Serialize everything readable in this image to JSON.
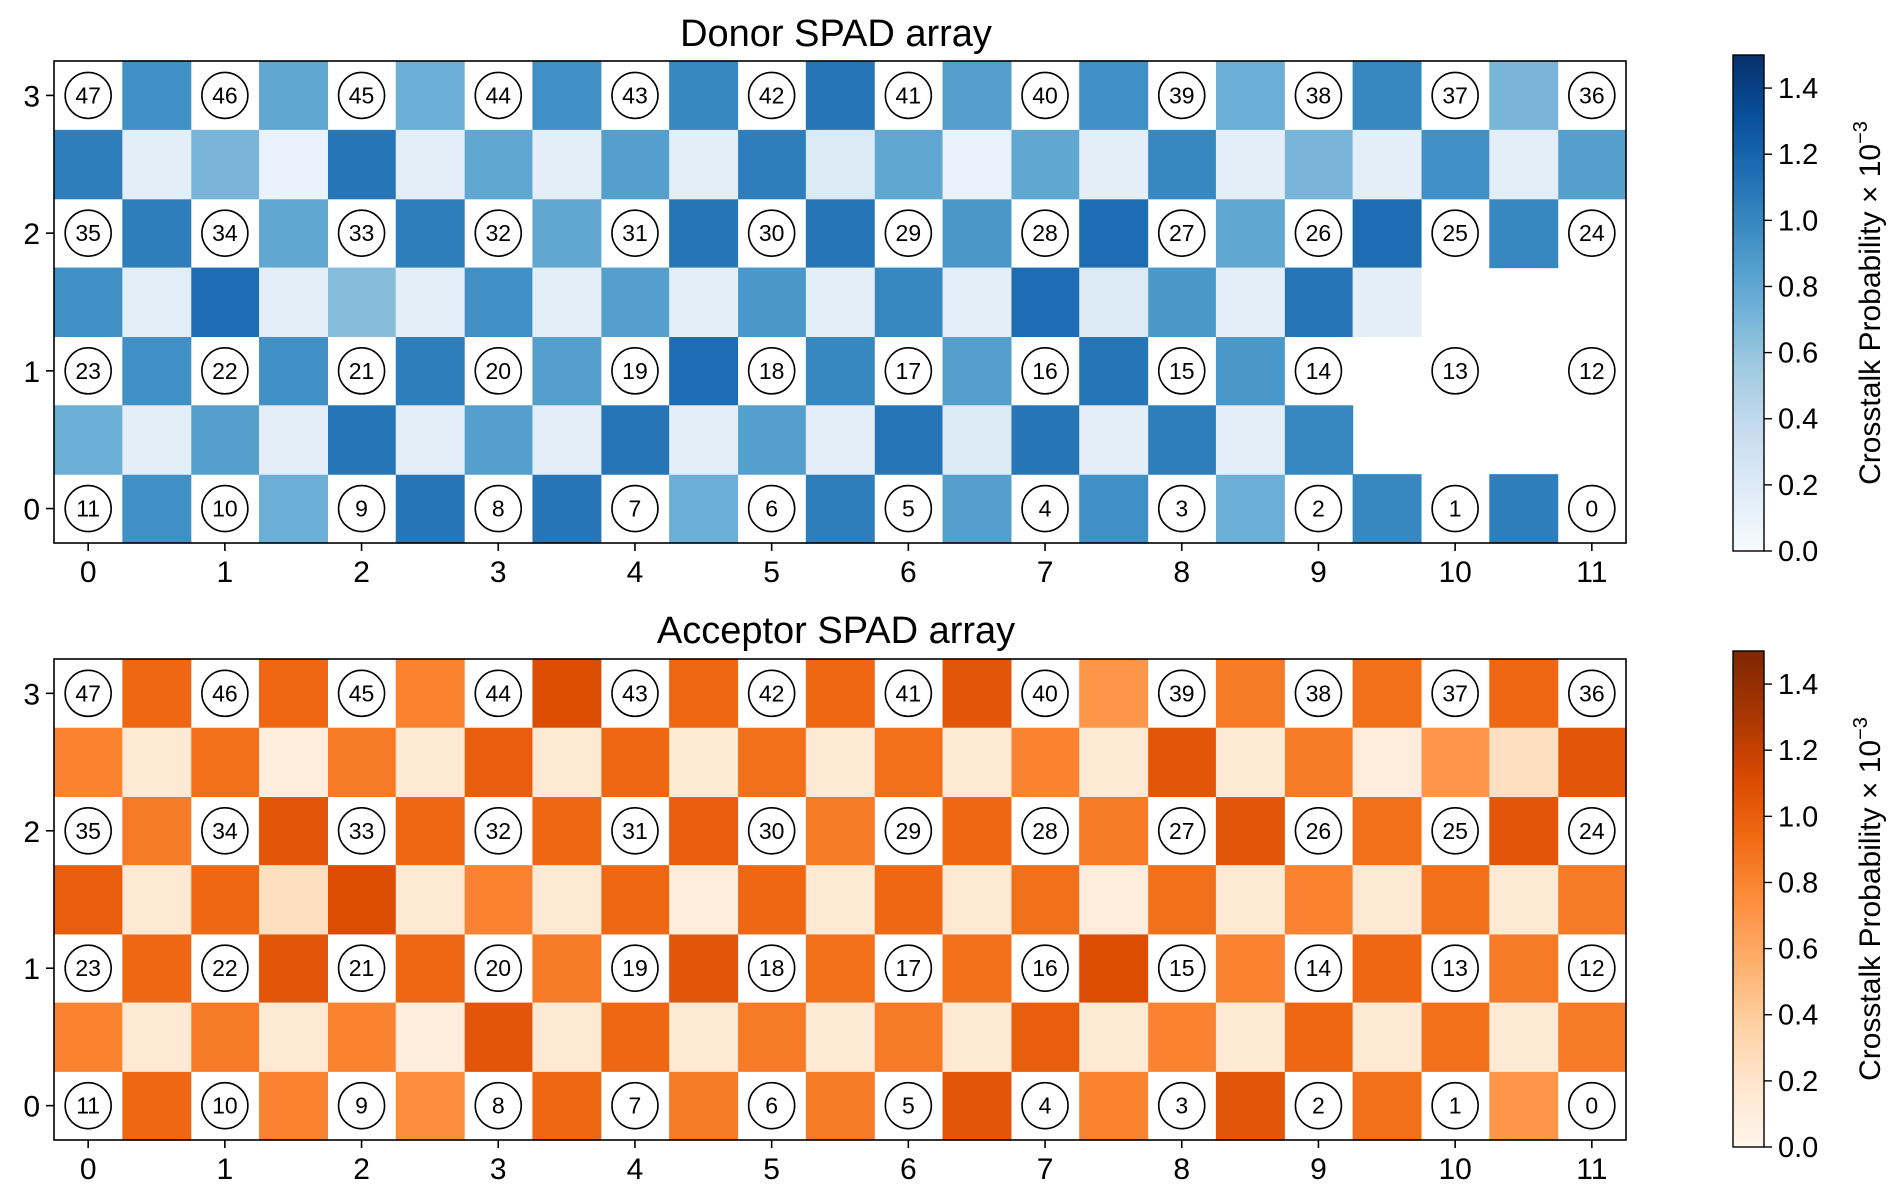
{
  "chart_data": [
    {
      "type": "heatmap",
      "title": "Donor SPAD array",
      "colormap": "Blues",
      "x_ticks": [
        "0",
        "1",
        "2",
        "3",
        "4",
        "5",
        "6",
        "7",
        "8",
        "9",
        "10",
        "11"
      ],
      "y_ticks": [
        "0",
        "1",
        "2",
        "3"
      ],
      "colorbar": {
        "label": "Crosstalk Probability × 10",
        "label_exponent": "−3",
        "range": [
          0,
          1.5
        ],
        "ticks": [
          "0.0",
          "0.2",
          "0.4",
          "0.6",
          "0.8",
          "1.0",
          "1.2",
          "1.4"
        ]
      },
      "pixel_ids": [
        [
          "11",
          "10",
          "9",
          "8",
          "7",
          "6",
          "5",
          "4",
          "3",
          "2",
          "1",
          "0"
        ],
        [
          "23",
          "22",
          "21",
          "20",
          "19",
          "18",
          "17",
          "16",
          "15",
          "14",
          "13",
          "12"
        ],
        [
          "35",
          "34",
          "33",
          "32",
          "31",
          "30",
          "29",
          "28",
          "27",
          "26",
          "25",
          "24"
        ],
        [
          "47",
          "46",
          "45",
          "44",
          "43",
          "42",
          "41",
          "40",
          "39",
          "38",
          "37",
          "36"
        ]
      ],
      "horizontal_neighbors": [
        [
          0.95,
          0.75,
          1.1,
          1.1,
          0.75,
          1.05,
          0.85,
          0.95,
          0.75,
          1.0,
          1.05
        ],
        [
          0.95,
          0.95,
          1.05,
          0.85,
          1.15,
          1.0,
          0.85,
          1.1,
          0.9,
          null,
          null
        ],
        [
          1.05,
          0.8,
          1.05,
          0.8,
          1.1,
          1.1,
          0.9,
          1.15,
          0.8,
          1.15,
          1.0
        ],
        [
          0.95,
          0.8,
          0.75,
          0.95,
          1.0,
          1.1,
          0.85,
          0.95,
          0.75,
          1.0,
          0.7
        ]
      ],
      "vertical_neighbors": [
        [
          0.75,
          0.85,
          1.1,
          0.85,
          1.1,
          0.85,
          1.1,
          1.1,
          1.05,
          1.0,
          null,
          null
        ],
        [
          0.95,
          1.15,
          0.65,
          0.95,
          0.85,
          0.9,
          1.0,
          1.15,
          0.9,
          1.1,
          null,
          null
        ],
        [
          1.05,
          0.7,
          1.1,
          0.8,
          0.85,
          1.05,
          0.8,
          0.8,
          1.0,
          0.7,
          0.95,
          0.85
        ]
      ],
      "diagonal_neighbors": [
        [
          0.15,
          0.15,
          0.15,
          0.15,
          0.15,
          0.15,
          0.2,
          0.15,
          0.15,
          null,
          null
        ],
        [
          0.15,
          0.15,
          0.15,
          0.15,
          0.15,
          0.15,
          0.15,
          0.2,
          0.15,
          0.15,
          null
        ],
        [
          0.15,
          0.1,
          0.15,
          0.15,
          0.15,
          0.2,
          0.1,
          0.15,
          0.15,
          0.15,
          0.15
        ]
      ]
    },
    {
      "type": "heatmap",
      "title": "Acceptor SPAD array",
      "colormap": "Oranges",
      "x_ticks": [
        "0",
        "1",
        "2",
        "3",
        "4",
        "5",
        "6",
        "7",
        "8",
        "9",
        "10",
        "11"
      ],
      "y_ticks": [
        "0",
        "1",
        "2",
        "3"
      ],
      "colorbar": {
        "label": "Crosstalk Probability × 10",
        "label_exponent": "−3",
        "range": [
          0,
          1.5
        ],
        "ticks": [
          "0.0",
          "0.2",
          "0.4",
          "0.6",
          "0.8",
          "1.0",
          "1.2",
          "1.4"
        ]
      },
      "pixel_ids": [
        [
          "11",
          "10",
          "9",
          "8",
          "7",
          "6",
          "5",
          "4",
          "3",
          "2",
          "1",
          "0"
        ],
        [
          "23",
          "22",
          "21",
          "20",
          "19",
          "18",
          "17",
          "16",
          "15",
          "14",
          "13",
          "12"
        ],
        [
          "35",
          "34",
          "33",
          "32",
          "31",
          "30",
          "29",
          "28",
          "27",
          "26",
          "25",
          "24"
        ],
        [
          "47",
          "46",
          "45",
          "44",
          "43",
          "42",
          "41",
          "40",
          "39",
          "38",
          "37",
          "36"
        ]
      ],
      "horizontal_neighbors": [
        [
          0.95,
          0.8,
          0.75,
          0.95,
          0.85,
          0.85,
          1.05,
          0.8,
          1.05,
          0.9,
          0.7
        ],
        [
          0.95,
          1.05,
          0.95,
          0.85,
          1.05,
          0.9,
          0.9,
          1.1,
          0.8,
          0.95,
          0.85
        ],
        [
          0.85,
          1.05,
          0.95,
          0.95,
          1.0,
          0.85,
          0.95,
          0.85,
          1.05,
          0.9,
          1.05
        ],
        [
          0.95,
          0.95,
          0.8,
          1.1,
          0.95,
          0.95,
          1.05,
          0.7,
          0.85,
          0.9,
          0.95
        ]
      ],
      "vertical_neighbors": [
        [
          0.8,
          0.85,
          0.8,
          1.05,
          0.95,
          0.85,
          0.85,
          1.0,
          0.8,
          0.95,
          0.9,
          0.85
        ],
        [
          1.0,
          0.95,
          1.1,
          0.8,
          0.95,
          0.95,
          0.95,
          0.9,
          0.9,
          0.8,
          0.9,
          0.85
        ],
        [
          0.8,
          0.9,
          0.85,
          1.0,
          0.95,
          0.9,
          0.9,
          0.8,
          1.05,
          0.85,
          0.7,
          1.05
        ]
      ],
      "diagonal_neighbors": [
        [
          0.15,
          0.15,
          0.1,
          0.15,
          0.15,
          0.15,
          0.15,
          0.15,
          0.15,
          0.15,
          0.15
        ],
        [
          0.15,
          0.25,
          0.15,
          0.15,
          0.1,
          0.15,
          0.15,
          0.1,
          0.15,
          0.15,
          0.15
        ],
        [
          0.15,
          0.1,
          0.15,
          0.15,
          0.15,
          0.15,
          0.15,
          0.15,
          0.15,
          0.1,
          0.25
        ]
      ]
    }
  ]
}
